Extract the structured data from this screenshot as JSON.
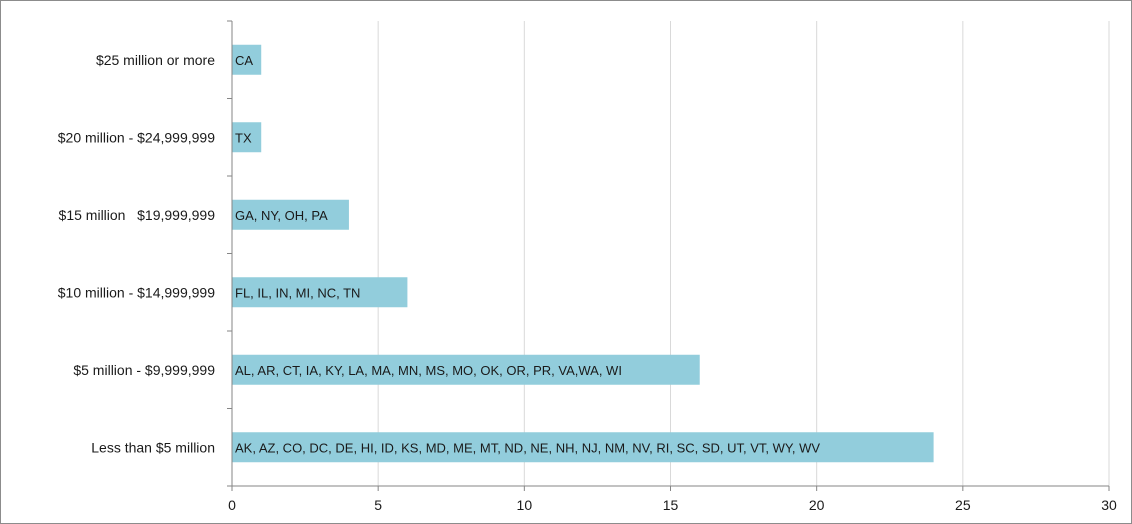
{
  "chart_data": {
    "type": "bar",
    "orientation": "horizontal",
    "categories": [
      "Less than $5 million",
      "$5 million - $9,999,999",
      "$10 million - $14,999,999",
      "$15 million   $19,999,999",
      "$20 million - $24,999,999",
      "$25 million or more"
    ],
    "values": [
      24,
      16,
      6,
      4,
      1,
      1
    ],
    "bar_labels": [
      "AK, AZ, CO, DC, DE, HI, ID, KS, MD, ME, MT, ND, NE, NH, NJ, NM, NV, RI, SC, SD, UT, VT, WY, WV",
      "AL, AR, CT, IA, KY, LA, MA, MN, MS, MO, OK, OR, PR, VA,WA, WI",
      "FL, IL, IN, MI, NC, TN",
      "GA, NY, OH, PA",
      "TX",
      "CA"
    ],
    "x_ticks": [
      "0",
      "5",
      "10",
      "15",
      "20",
      "25",
      "30"
    ],
    "xlim": [
      0,
      30
    ],
    "grid": "vertical",
    "legend": "none",
    "title": "",
    "xlabel": "",
    "ylabel": "",
    "bar_color": "#92CDDC",
    "grid_color": "#d9d9d9",
    "axis_color": "#868686"
  }
}
